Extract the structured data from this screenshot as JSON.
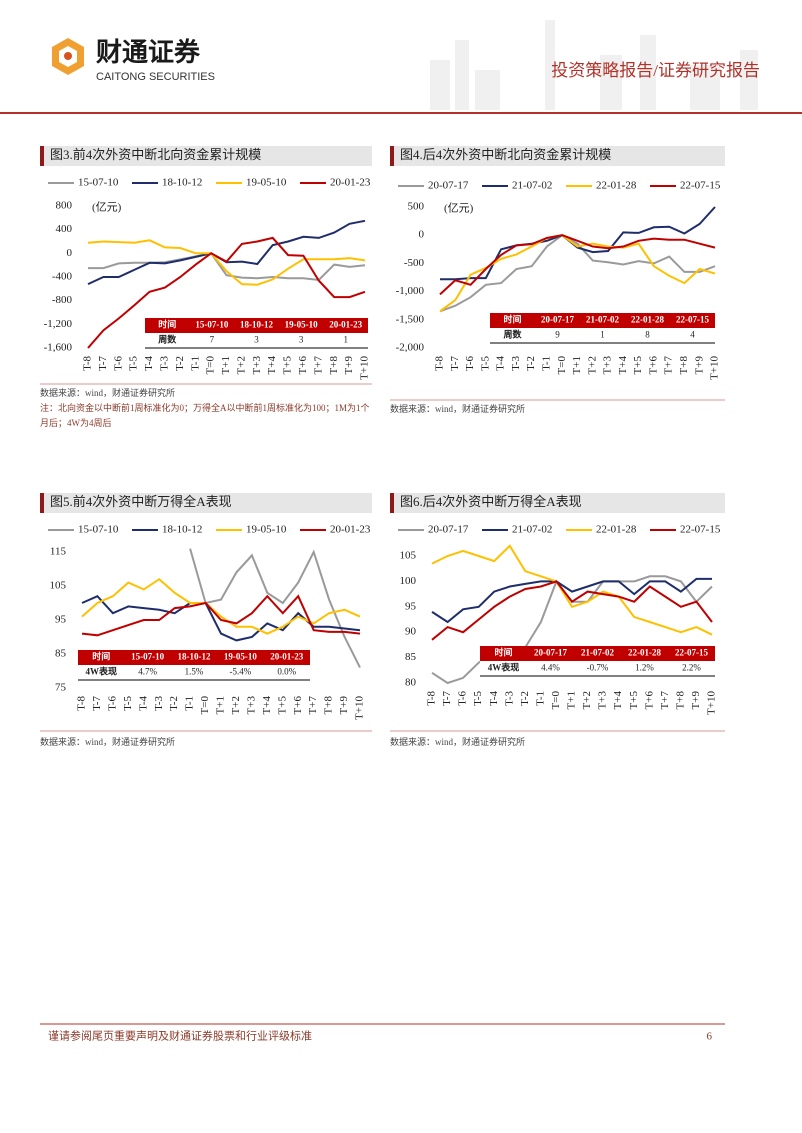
{
  "header": {
    "company": "财通证券",
    "company_en": "CAITONG SECURITIES",
    "report_type": "投资策略报告/证券研究报告"
  },
  "chart_data": [
    {
      "type": "line",
      "title": "图3.前4次外资中断北向资金累计规模",
      "y_label": "(亿元)",
      "categories": [
        "T-8",
        "T-7",
        "T-6",
        "T-5",
        "T-4",
        "T-3",
        "T-2",
        "T-1",
        "T=0",
        "T+1",
        "T+2",
        "T+3",
        "T+4",
        "T+5",
        "T+6",
        "T+7",
        "T+8",
        "T+9",
        "T+10"
      ],
      "ylim": [
        -1600,
        800
      ],
      "yticks": [
        800,
        400,
        0,
        -400,
        -800,
        {
          "value": -1200,
          "label": "-1,200"
        },
        {
          "value": -1600,
          "label": "-1,600"
        }
      ],
      "series": [
        {
          "name": "15-07-10",
          "color": "#9a9a9a",
          "values": [
            -250,
            -250,
            -170,
            -160,
            -160,
            -150,
            -100,
            -50,
            0,
            -370,
            -410,
            -420,
            -400,
            -420,
            -420,
            -450,
            -190,
            -230,
            -200
          ]
        },
        {
          "name": "18-10-12",
          "color": "#1f2d6b",
          "values": [
            -520,
            -400,
            -400,
            -280,
            -160,
            -170,
            -120,
            -60,
            0,
            -150,
            -140,
            -180,
            140,
            200,
            280,
            260,
            350,
            500,
            550
          ]
        },
        {
          "name": "19-05-10",
          "color": "#ffc000",
          "values": [
            180,
            200,
            190,
            180,
            220,
            100,
            90,
            0,
            0,
            -300,
            -520,
            -530,
            -440,
            -260,
            -100,
            -100,
            -100,
            -80,
            -120
          ]
        },
        {
          "name": "20-01-23",
          "color": "#c00000",
          "values": [
            -1600,
            -1300,
            -1100,
            -880,
            -650,
            -580,
            -400,
            -190,
            0,
            -140,
            160,
            200,
            260,
            -30,
            -40,
            -460,
            -740,
            -740,
            -650
          ]
        }
      ],
      "table": {
        "header": [
          "时间",
          "15-07-10",
          "18-10-12",
          "19-05-10",
          "20-01-23"
        ],
        "rows": [
          [
            "周数",
            7,
            3,
            3,
            1
          ]
        ]
      },
      "source": "数据来源：wind，财通证券研究所",
      "note": "注：北向资金以中断前1周标准化为0；万得全A以中断前1周标准化为100；1M为1个月后；4W为4周后"
    },
    {
      "type": "line",
      "title": "图4.后4次外资中断北向资金累计规模",
      "y_label": "(亿元)",
      "categories": [
        "T-8",
        "T-7",
        "T-6",
        "T-5",
        "T-4",
        "T-3",
        "T-2",
        "T-1",
        "T=0",
        "T+1",
        "T+2",
        "T+3",
        "T+4",
        "T+5",
        "T+6",
        "T+7",
        "T+8",
        "T+9",
        "T+10"
      ],
      "ylim": [
        -2000,
        500
      ],
      "yticks": [
        500,
        0,
        -500,
        {
          "value": -1000,
          "label": "-1,000"
        },
        {
          "value": -1500,
          "label": "-1,500"
        },
        {
          "value": -2000,
          "label": "-2,000"
        }
      ],
      "series": [
        {
          "name": "20-07-17",
          "color": "#9a9a9a",
          "values": [
            -1350,
            -1250,
            -1100,
            -880,
            -850,
            -600,
            -550,
            -200,
            0,
            -150,
            -450,
            -480,
            -520,
            -460,
            -500,
            -380,
            -650,
            -650,
            -550
          ]
        },
        {
          "name": "21-07-02",
          "color": "#1f2d6b",
          "values": [
            -780,
            -780,
            -760,
            -760,
            -250,
            -180,
            -150,
            -100,
            0,
            -220,
            -300,
            -280,
            50,
            40,
            140,
            150,
            30,
            200,
            500
          ]
        },
        {
          "name": "22-01-28",
          "color": "#ffc000",
          "values": [
            -1350,
            -1150,
            -700,
            -580,
            -420,
            -340,
            -200,
            -50,
            0,
            -200,
            -150,
            -200,
            -220,
            -150,
            -550,
            -720,
            -850,
            -600,
            -680
          ]
        },
        {
          "name": "22-07-15",
          "color": "#c00000",
          "values": [
            -1050,
            -800,
            -880,
            -600,
            -350,
            -180,
            -160,
            -50,
            0,
            -100,
            -200,
            -230,
            -200,
            -100,
            -60,
            -80,
            -80,
            -150,
            -220
          ]
        }
      ],
      "table": {
        "header": [
          "时间",
          "20-07-17",
          "21-07-02",
          "22-01-28",
          "22-07-15"
        ],
        "rows": [
          [
            "周数",
            9,
            1,
            8,
            4
          ]
        ]
      },
      "source": "数据来源：wind，财通证券研究所"
    },
    {
      "type": "line",
      "title": "图5.前4次外资中断万得全A表现",
      "categories": [
        "T-8",
        "T-7",
        "T-6",
        "T-5",
        "T-4",
        "T-3",
        "T-2",
        "T-1",
        "T=0",
        "T+1",
        "T+2",
        "T+3",
        "T+4",
        "T+5",
        "T+6",
        "T+7",
        "T+8",
        "T+9",
        "T+10"
      ],
      "ylim": [
        75,
        115
      ],
      "yticks": [
        115,
        105,
        95,
        85,
        75
      ],
      "series": [
        {
          "name": "15-07-10",
          "color": "#9a9a9a",
          "values": [
            null,
            null,
            null,
            null,
            null,
            null,
            null,
            116,
            100,
            101,
            109,
            114,
            103,
            100,
            106,
            115,
            101,
            90,
            81
          ]
        },
        {
          "name": "18-10-12",
          "color": "#1f2d6b",
          "values": [
            100,
            102,
            97,
            99,
            98.5,
            98,
            97,
            100,
            100,
            91,
            89,
            90,
            94,
            92,
            97,
            93,
            93,
            92.5,
            92
          ]
        },
        {
          "name": "19-05-10",
          "color": "#ffc000",
          "values": [
            96,
            100,
            102,
            106,
            104,
            107,
            103,
            100,
            100,
            96,
            93,
            93,
            91,
            93,
            96,
            94,
            97,
            98,
            96
          ]
        },
        {
          "name": "20-01-23",
          "color": "#c00000",
          "values": [
            91,
            90.5,
            92,
            93.5,
            95,
            95,
            98.5,
            99,
            100,
            95,
            94,
            97,
            102,
            97,
            102,
            92,
            91.5,
            91.5,
            91
          ]
        }
      ],
      "table": {
        "header": [
          "时间",
          "15-07-10",
          "18-10-12",
          "19-05-10",
          "20-01-23"
        ],
        "rows": [
          [
            "4W表现",
            "4.7%",
            "1.5%",
            "-5.4%",
            "0.0%"
          ]
        ]
      },
      "source": "数据来源：wind，财通证券研究所"
    },
    {
      "type": "line",
      "title": "图6.后4次外资中断万得全A表现",
      "categories": [
        "T-8",
        "T-7",
        "T-6",
        "T-5",
        "T-4",
        "T-3",
        "T-2",
        "T-1",
        "T=0",
        "T+1",
        "T+2",
        "T+3",
        "T+4",
        "T+5",
        "T+6",
        "T+7",
        "T+8",
        "T+9",
        "T+10"
      ],
      "ylim": [
        80,
        105
      ],
      "yticks": [
        105,
        100,
        95,
        90,
        85,
        80
      ],
      "series": [
        {
          "name": "20-07-17",
          "color": "#9a9a9a",
          "values": [
            82,
            80,
            81,
            84,
            86,
            86,
            87,
            92,
            100,
            96,
            96,
            100,
            100,
            100,
            101,
            101,
            100,
            96,
            99
          ]
        },
        {
          "name": "21-07-02",
          "color": "#1f2d6b",
          "values": [
            94,
            92,
            94.5,
            95,
            98,
            99,
            99.5,
            100,
            100,
            98,
            99,
            100,
            100,
            97.5,
            100,
            100,
            98,
            100.5,
            100.5
          ]
        },
        {
          "name": "22-01-28",
          "color": "#ffc000",
          "values": [
            103.5,
            105,
            106,
            105,
            104,
            107,
            102,
            101,
            100,
            95,
            96,
            98,
            97,
            93,
            92,
            91,
            90,
            91,
            89.5
          ]
        },
        {
          "name": "22-07-15",
          "color": "#c00000",
          "values": [
            88.5,
            91,
            90,
            92.5,
            95,
            97,
            98.5,
            99,
            100,
            96,
            98,
            97.5,
            97,
            96,
            99,
            97,
            95,
            96,
            92
          ]
        }
      ],
      "table": {
        "header": [
          "时间",
          "20-07-17",
          "21-07-02",
          "22-01-28",
          "22-07-15"
        ],
        "rows": [
          [
            "4W表现",
            "4.4%",
            "-0.7%",
            "1.2%",
            "2.2%"
          ]
        ]
      },
      "source": "数据来源：wind，财通证券研究所"
    }
  ],
  "footer": {
    "disclaimer": "谨请参阅尾页重要声明及财通证券股票和行业评级标准",
    "page": "6"
  }
}
